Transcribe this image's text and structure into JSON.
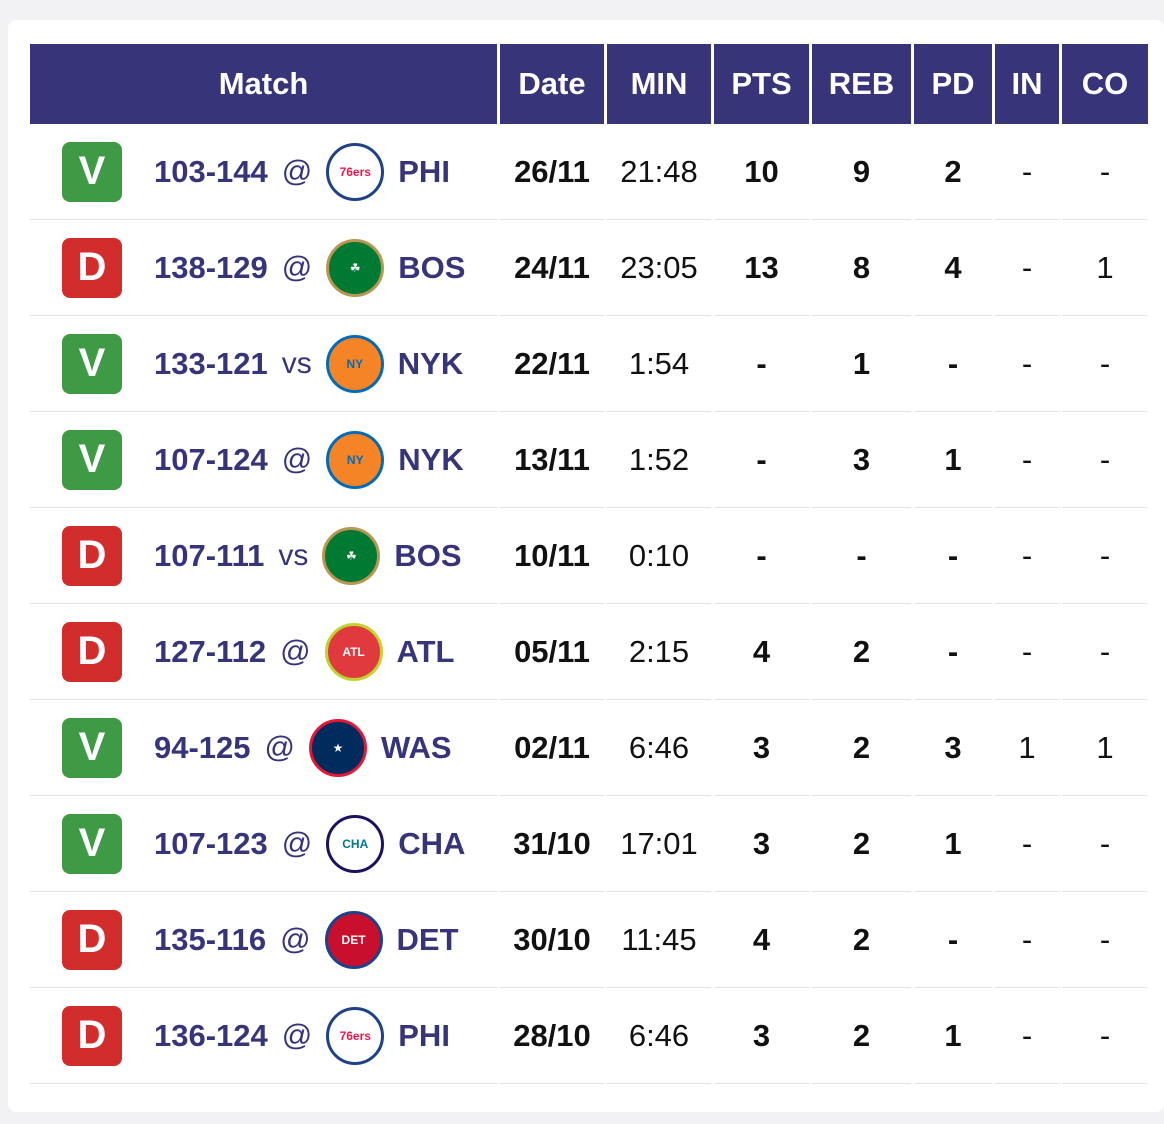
{
  "headers": [
    "Match",
    "Date",
    "MIN",
    "PTS",
    "REB",
    "PD",
    "IN",
    "CO"
  ],
  "rows": [
    {
      "result": "V",
      "score": "103-144",
      "loc": "@",
      "team": "PHI",
      "logo": "philadelphia-76ers-logo",
      "date": "26/11",
      "min": "21:48",
      "pts": "10",
      "reb": "9",
      "pd": "2",
      "in": "-",
      "co": "-"
    },
    {
      "result": "D",
      "score": "138-129",
      "loc": "@",
      "team": "BOS",
      "logo": "boston-celtics-logo",
      "date": "24/11",
      "min": "23:05",
      "pts": "13",
      "reb": "8",
      "pd": "4",
      "in": "-",
      "co": "1"
    },
    {
      "result": "V",
      "score": "133-121",
      "loc": "vs",
      "team": "NYK",
      "logo": "new-york-knicks-logo",
      "date": "22/11",
      "min": "1:54",
      "pts": "-",
      "reb": "1",
      "pd": "-",
      "in": "-",
      "co": "-"
    },
    {
      "result": "V",
      "score": "107-124",
      "loc": "@",
      "team": "NYK",
      "logo": "new-york-knicks-logo",
      "date": "13/11",
      "min": "1:52",
      "pts": "-",
      "reb": "3",
      "pd": "1",
      "in": "-",
      "co": "-"
    },
    {
      "result": "D",
      "score": "107-111",
      "loc": "vs",
      "team": "BOS",
      "logo": "boston-celtics-logo",
      "date": "10/11",
      "min": "0:10",
      "pts": "-",
      "reb": "-",
      "pd": "-",
      "in": "-",
      "co": "-"
    },
    {
      "result": "D",
      "score": "127-112",
      "loc": "@",
      "team": "ATL",
      "logo": "atlanta-hawks-logo",
      "date": "05/11",
      "min": "2:15",
      "pts": "4",
      "reb": "2",
      "pd": "-",
      "in": "-",
      "co": "-"
    },
    {
      "result": "V",
      "score": "94-125",
      "loc": "@",
      "team": "WAS",
      "logo": "washington-wizards-logo",
      "date": "02/11",
      "min": "6:46",
      "pts": "3",
      "reb": "2",
      "pd": "3",
      "in": "1",
      "co": "1"
    },
    {
      "result": "V",
      "score": "107-123",
      "loc": "@",
      "team": "CHA",
      "logo": "charlotte-hornets-logo",
      "date": "31/10",
      "min": "17:01",
      "pts": "3",
      "reb": "2",
      "pd": "1",
      "in": "-",
      "co": "-"
    },
    {
      "result": "D",
      "score": "135-116",
      "loc": "@",
      "team": "DET",
      "logo": "detroit-pistons-logo",
      "date": "30/10",
      "min": "11:45",
      "pts": "4",
      "reb": "2",
      "pd": "-",
      "in": "-",
      "co": "-"
    },
    {
      "result": "D",
      "score": "136-124",
      "loc": "@",
      "team": "PHI",
      "logo": "philadelphia-76ers-logo",
      "date": "28/10",
      "min": "6:46",
      "pts": "3",
      "reb": "2",
      "pd": "1",
      "in": "-",
      "co": "-"
    }
  ],
  "colors": {
    "header_bg": "#37347a",
    "win": "#3e9a44",
    "loss": "#d32c2c",
    "team_text": "#37347a"
  }
}
